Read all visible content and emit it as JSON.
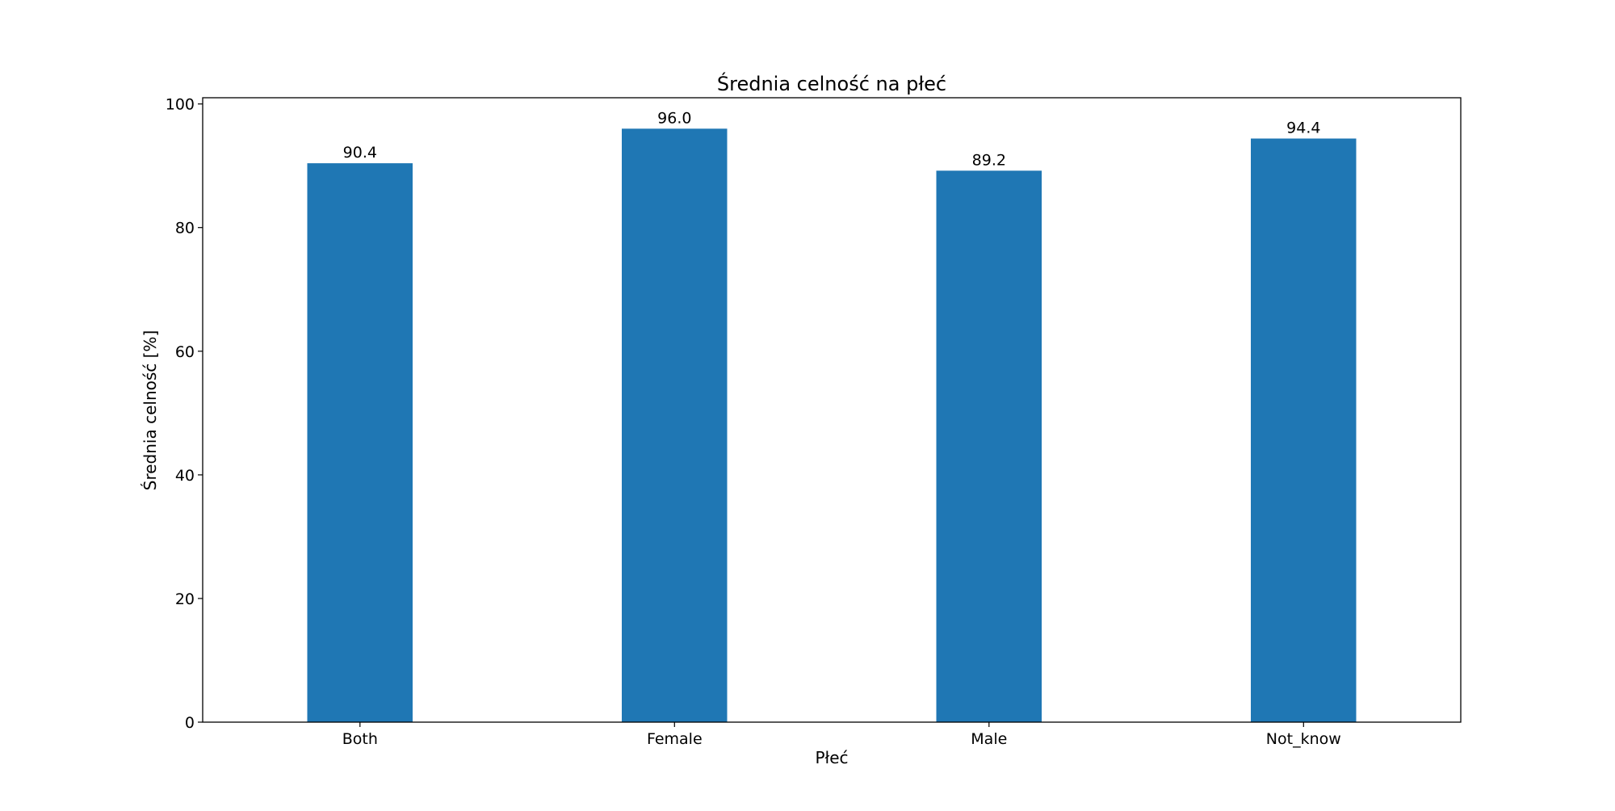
{
  "chart_data": {
    "type": "bar",
    "title": "Średnia celność na płeć",
    "xlabel": "Płeć",
    "ylabel": "Średnia celność [%]",
    "categories": [
      "Both",
      "Female",
      "Male",
      "Not_know"
    ],
    "values": [
      90.4,
      96.0,
      89.2,
      94.4
    ],
    "value_labels": [
      "90.4",
      "96.0",
      "89.2",
      "94.4"
    ],
    "ylim": [
      0,
      101
    ],
    "yticks": [
      0,
      20,
      40,
      60,
      80,
      100
    ],
    "ytick_labels": [
      "0",
      "20",
      "40",
      "60",
      "80",
      "100"
    ],
    "bar_color": "#1f77b4",
    "grid": false,
    "legend": false
  }
}
